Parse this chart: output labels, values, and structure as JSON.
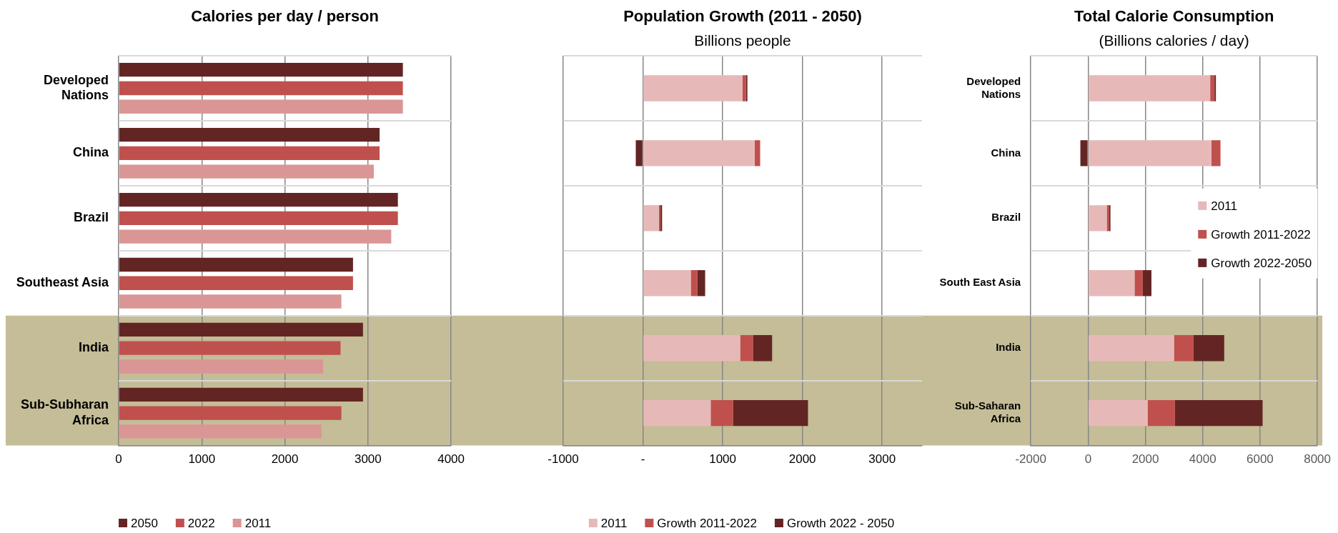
{
  "chart_data": [
    {
      "type": "bar",
      "orientation": "horizontal",
      "title": "Calories per day / person",
      "categories": [
        "Developed Nations",
        "China",
        "Brazil",
        "Southeast Asia",
        "India",
        "Sub-Subharan Africa"
      ],
      "series": [
        {
          "name": "2050",
          "color": "#632523",
          "values": [
            3420,
            3140,
            3360,
            2820,
            2940,
            2940
          ]
        },
        {
          "name": "2022",
          "color": "#c0504d",
          "values": [
            3420,
            3140,
            3360,
            2820,
            2670,
            2680
          ]
        },
        {
          "name": "2011",
          "color": "#d99694",
          "values": [
            3420,
            3070,
            3280,
            2680,
            2460,
            2440
          ]
        }
      ],
      "xlim": [
        0,
        4000
      ],
      "xticks": [
        0,
        1000,
        2000,
        3000,
        4000
      ],
      "grid": true,
      "legend": "bottom",
      "bands": [
        {
          "axis": "y",
          "from": "India",
          "to": "Sub-Subharan Africa",
          "color": "#c4bd97"
        }
      ]
    },
    {
      "type": "bar",
      "orientation": "horizontal",
      "stacked": true,
      "title": "Population Growth (2011 - 2050)",
      "subtitle": "Billions people",
      "categories": [
        "Developed Nations",
        "China",
        "Brazil",
        "Southeast Asia",
        "India",
        "Sub-Subharan Africa"
      ],
      "tick_labels": "x",
      "series": [
        {
          "name": "2011",
          "color": "#e6b9b8",
          "values": [
            1250,
            1400,
            200,
            600,
            1220,
            850
          ]
        },
        {
          "name": "Growth 2011-2022",
          "color": "#c0504d",
          "values": [
            40,
            70,
            20,
            80,
            160,
            280
          ]
        },
        {
          "name": "Growth 2022 - 2050",
          "color": "#632523",
          "values": [
            20,
            -90,
            20,
            100,
            240,
            940
          ]
        }
      ],
      "xlim": [
        -1000,
        3500
      ],
      "xticks": [
        -1000,
        {
          "value": 0,
          "label": "-"
        },
        1000,
        2000,
        3000
      ],
      "grid": true,
      "legend": "bottom",
      "bands": [
        {
          "axis": "y",
          "from": "India",
          "to": "Sub-Subharan Africa",
          "color": "#c4bd97"
        }
      ]
    },
    {
      "type": "bar",
      "orientation": "horizontal",
      "stacked": true,
      "title": "Total Calorie Consumption",
      "subtitle": "(Billions calories / day)",
      "categories": [
        "Developed Nations",
        "China",
        "Brazil",
        "South East Asia",
        "India",
        "Sub-Saharan Africa"
      ],
      "series": [
        {
          "name": "2011",
          "color": "#e6b9b8",
          "values": [
            4260,
            4300,
            650,
            1620,
            3000,
            2080
          ]
        },
        {
          "name": "Growth 2011-2022",
          "color": "#c0504d",
          "values": [
            150,
            320,
            90,
            290,
            680,
            950
          ]
        },
        {
          "name": "Growth 2022-2050",
          "color": "#632523",
          "values": [
            50,
            -270,
            40,
            300,
            1070,
            3060
          ]
        }
      ],
      "xlim": [
        -2000,
        8000
      ],
      "xticks": [
        -2000,
        0,
        2000,
        4000,
        6000,
        8000
      ],
      "grid": true,
      "legend": "right",
      "bands": [
        {
          "axis": "y",
          "from": "India",
          "to": "Sub-Saharan Africa",
          "color": "#c4bd97"
        }
      ]
    }
  ]
}
